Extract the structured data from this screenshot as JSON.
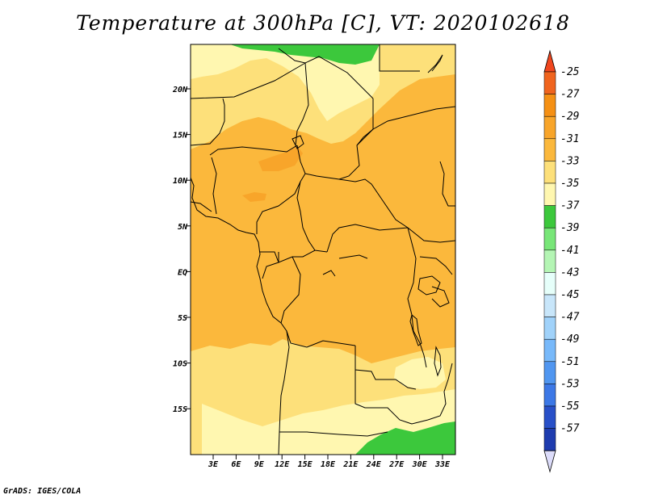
{
  "title": "Temperature at 300hPa [C], VT: 2020102618",
  "credit": "GrADS: IGES/COLA",
  "map": {
    "lat_ticks": [
      "20N",
      "15N",
      "10N",
      "5N",
      "EQ",
      "5S",
      "10S",
      "15S"
    ],
    "lon_ticks": [
      "3E",
      "6E",
      "9E",
      "12E",
      "15E",
      "18E",
      "21E",
      "24E",
      "27E",
      "30E",
      "33E"
    ]
  },
  "colorbar": {
    "labels": [
      "-25",
      "-27",
      "-29",
      "-31",
      "-33",
      "-35",
      "-37",
      "-39",
      "-41",
      "-43",
      "-45",
      "-47",
      "-49",
      "-51",
      "-53",
      "-55",
      "-57"
    ],
    "colors": [
      "#f0641e",
      "#f59014",
      "#f8a52a",
      "#fbb83c",
      "#fde07a",
      "#fff7b0",
      "#3cc83c",
      "#78e678",
      "#b4f5b4",
      "#e6fffa",
      "#c8e6fa",
      "#a0d2fa",
      "#78b9fa",
      "#5096f0",
      "#3c78e6",
      "#2850c8",
      "#1e3caf",
      "#0a0a64"
    ],
    "top_color": "#f0461e",
    "bottom_color": "#dcdcfa"
  }
}
